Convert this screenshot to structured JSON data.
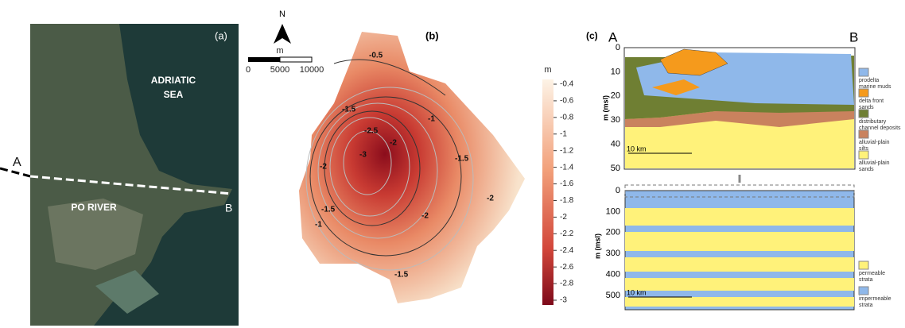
{
  "panel_a": {
    "label": "(a)",
    "sea_label": [
      "ADRIATIC",
      "SEA"
    ],
    "river_label": "PO RIVER",
    "section_start": "A",
    "section_end": "B"
  },
  "panel_b": {
    "label": "(b)",
    "north": "N",
    "scale_unit": "m",
    "scale_ticks": [
      0,
      5000,
      10000
    ],
    "contour_labels": [
      -0.5,
      -1.5,
      -1,
      -2.5,
      -2,
      -3,
      -2,
      -1.5,
      -2,
      -1.5,
      -1,
      -2,
      -1.5
    ],
    "colorbar": {
      "title": "m",
      "ticks": [
        -0.4,
        -0.6,
        -0.8,
        -1,
        -1.2,
        -1.4,
        -1.6,
        -1.8,
        -2,
        -2.2,
        -2.4,
        -2.6,
        -2.8,
        -3
      ]
    }
  },
  "panel_c": {
    "label": "(c)",
    "section_start": "A",
    "section_end": "B",
    "top": {
      "y_label": "m (msl)",
      "yticks": [
        0,
        10,
        20,
        30,
        40,
        50
      ],
      "scale": "10 km",
      "legend": [
        [
          "prodelta",
          "marine muds"
        ],
        [
          "delta front",
          "sands"
        ],
        [
          "distributary",
          "channel deposits"
        ],
        [
          "alluvial-plain",
          "silts"
        ],
        [
          "alluvial-plain",
          "sands"
        ]
      ]
    },
    "bottom": {
      "y_label": "m (msl)",
      "yticks": [
        0,
        100,
        200,
        300,
        400,
        500
      ],
      "scale": "10 km",
      "legend": [
        [
          "permeable",
          "strata"
        ],
        [
          "impermeable",
          "strata"
        ]
      ]
    }
  }
}
